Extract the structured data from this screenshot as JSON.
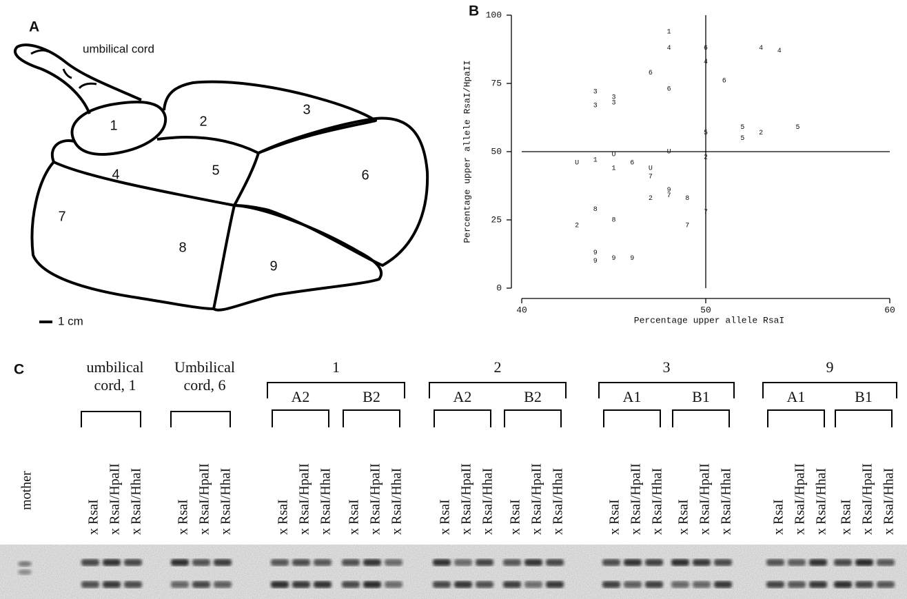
{
  "panel_a": {
    "label": "A",
    "cord_label": "umbilical cord",
    "regions": [
      "1",
      "2",
      "3",
      "4",
      "5",
      "6",
      "7",
      "8",
      "9"
    ],
    "scale": "1 cm"
  },
  "chart_data": {
    "type": "scatter",
    "label": "B",
    "xlabel": "Percentage upper allele RsaI",
    "ylabel": "Percentage upper allele RsaI/HpaII",
    "xlim": [
      40,
      60
    ],
    "ylim": [
      0,
      100
    ],
    "xticks": [
      40,
      50,
      60
    ],
    "yticks": [
      0,
      25,
      50,
      75,
      100
    ],
    "reference_lines": {
      "x": 50,
      "y": 50
    },
    "x": [
      48,
      48,
      50,
      50,
      53,
      54,
      47,
      48,
      51,
      44,
      44,
      45,
      45,
      50,
      52,
      52,
      53,
      55,
      48,
      50,
      43,
      44,
      45,
      45,
      46,
      47,
      47,
      48,
      48,
      47,
      49,
      44,
      50,
      43,
      45,
      49,
      44,
      44,
      45,
      46
    ],
    "values": [
      94,
      88,
      88,
      83,
      88,
      87,
      79,
      73,
      76,
      72,
      67,
      70,
      68,
      57,
      59,
      55,
      57,
      59,
      50,
      48,
      46,
      47,
      49,
      44,
      46,
      44,
      41,
      36,
      34,
      33,
      33,
      29,
      28,
      23,
      25,
      23,
      13,
      10,
      11,
      11
    ],
    "point_labels": [
      "1",
      "4",
      "6",
      "4",
      "4",
      "4",
      "6",
      "6",
      "6",
      "3",
      "3",
      "3",
      "3",
      "5",
      "5",
      "5",
      "2",
      "5",
      "U",
      "2",
      "U",
      "1",
      "U",
      "1",
      "6",
      "U",
      "7",
      "9",
      "7",
      "2",
      "8",
      "8",
      "7",
      "2",
      "8",
      "7",
      "9",
      "9",
      "9",
      "9"
    ],
    "color": "#000000"
  },
  "gel": {
    "label": "C",
    "mother": "mother",
    "enzymes": [
      "x RsaI",
      "x RsaI/HpaII",
      "x RsaI/HhaI"
    ],
    "groups": [
      {
        "title": [
          "umbilical",
          "cord, 1"
        ]
      },
      {
        "title": [
          "Umbilical",
          "cord, 6"
        ]
      },
      {
        "title": [
          "1"
        ],
        "subgroups": [
          "A2",
          "B2"
        ]
      },
      {
        "title": [
          "2"
        ],
        "subgroups": [
          "A2",
          "B2"
        ]
      },
      {
        "title": [
          "3"
        ],
        "subgroups": [
          "A1",
          "B1"
        ]
      },
      {
        "title": [
          "9"
        ],
        "subgroups": [
          "A1",
          "B1"
        ]
      }
    ]
  }
}
